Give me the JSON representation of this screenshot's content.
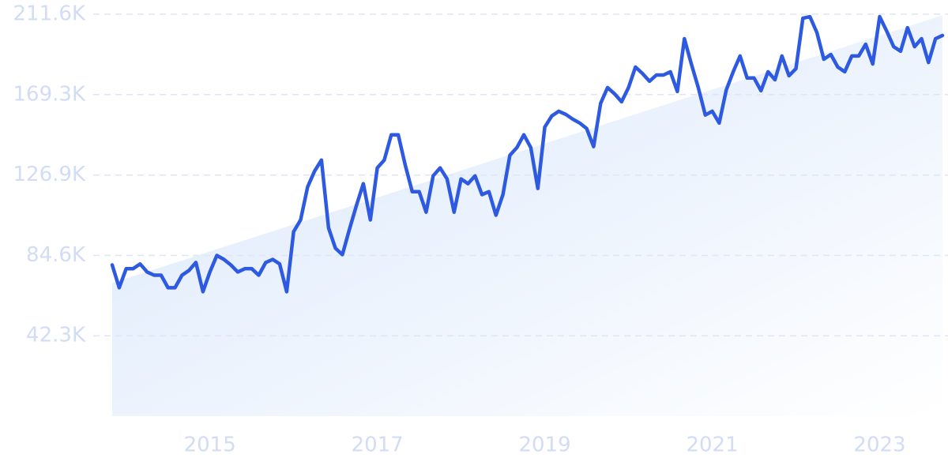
{
  "chart_data": {
    "type": "line",
    "color": "#2d5ae0",
    "x": [
      2013.833,
      2013.917,
      2014.0,
      2014.083,
      2014.167,
      2014.25,
      2014.333,
      2014.417,
      2014.5,
      2014.583,
      2014.667,
      2014.75,
      2014.833,
      2014.917,
      2015.0,
      2015.083,
      2015.167,
      2015.25,
      2015.333,
      2015.417,
      2015.5,
      2015.583,
      2015.667,
      2015.75,
      2015.833,
      2015.917,
      2016.0,
      2016.083,
      2016.167,
      2016.25,
      2016.333,
      2016.417,
      2016.5,
      2016.583,
      2016.667,
      2016.75,
      2016.833,
      2016.917,
      2017.0,
      2017.083,
      2017.167,
      2017.25,
      2017.333,
      2017.417,
      2017.5,
      2017.583,
      2017.667,
      2017.75,
      2017.833,
      2017.917,
      2018.0,
      2018.083,
      2018.167,
      2018.25,
      2018.333,
      2018.417,
      2018.5,
      2018.583,
      2018.667,
      2018.75,
      2018.833,
      2018.917,
      2019.0,
      2019.083,
      2019.167,
      2019.25,
      2019.333,
      2019.417,
      2019.5,
      2019.583,
      2019.667,
      2019.75,
      2019.833,
      2019.917,
      2020.0,
      2020.083,
      2020.167,
      2020.25,
      2020.333,
      2020.417,
      2020.5,
      2020.583,
      2020.667,
      2020.75,
      2020.833,
      2020.917,
      2021.0,
      2021.083,
      2021.167,
      2021.25,
      2021.333,
      2021.417,
      2021.5,
      2021.583,
      2021.667,
      2021.75,
      2021.833,
      2021.917,
      2022.0,
      2022.083,
      2022.167,
      2022.25,
      2022.333,
      2022.417,
      2022.5,
      2022.583,
      2022.667,
      2022.75,
      2022.833,
      2022.917,
      2023.0,
      2023.083,
      2023.167,
      2023.25,
      2023.333,
      2023.417,
      2023.5,
      2023.583,
      2023.667,
      2023.75
    ],
    "values": [
      79600,
      67600,
      77600,
      77600,
      80100,
      75900,
      74200,
      74200,
      67600,
      67600,
      74200,
      76700,
      80900,
      65500,
      75900,
      84600,
      82500,
      79600,
      75900,
      77600,
      77600,
      74200,
      80900,
      82500,
      80100,
      65500,
      97100,
      103300,
      120700,
      129000,
      134800,
      99100,
      88400,
      85000,
      98300,
      110800,
      122400,
      103300,
      130700,
      134800,
      148100,
      148100,
      132300,
      118200,
      118200,
      107400,
      126500,
      130700,
      124900,
      107400,
      124900,
      122400,
      126500,
      116600,
      118200,
      105800,
      116600,
      137300,
      141400,
      148100,
      141400,
      119900,
      152200,
      158000,
      160500,
      158900,
      156400,
      154300,
      151400,
      141900,
      164700,
      173000,
      169700,
      165500,
      173000,
      183800,
      180400,
      176300,
      179600,
      179600,
      181300,
      170900,
      198700,
      185400,
      173000,
      158500,
      160500,
      154300,
      171700,
      181300,
      189600,
      178000,
      178000,
      171300,
      181300,
      177100,
      189600,
      179200,
      182900,
      209500,
      210300,
      202000,
      187900,
      190400,
      183800,
      181300,
      189600,
      189600,
      195800,
      185400,
      210300,
      202800,
      194500,
      192100,
      204500,
      194500,
      198700,
      186200,
      198700,
      200400
    ],
    "trend": {
      "x": [
        2013.833,
        2023.75
      ],
      "values": [
        70100,
        211000
      ]
    },
    "xlim": [
      2013.833,
      2023.75
    ],
    "xticks": [
      2015,
      2017,
      2019,
      2021,
      2023
    ],
    "ylim": [
      0,
      211600
    ],
    "yticks": [
      {
        "value": 42300,
        "label": "42.3K"
      },
      {
        "value": 84600,
        "label": "84.6K"
      },
      {
        "value": 126900,
        "label": "126.9K"
      },
      {
        "value": 169300,
        "label": "169.3K"
      },
      {
        "value": 211600,
        "label": "211.6K"
      }
    ],
    "grid": true
  }
}
